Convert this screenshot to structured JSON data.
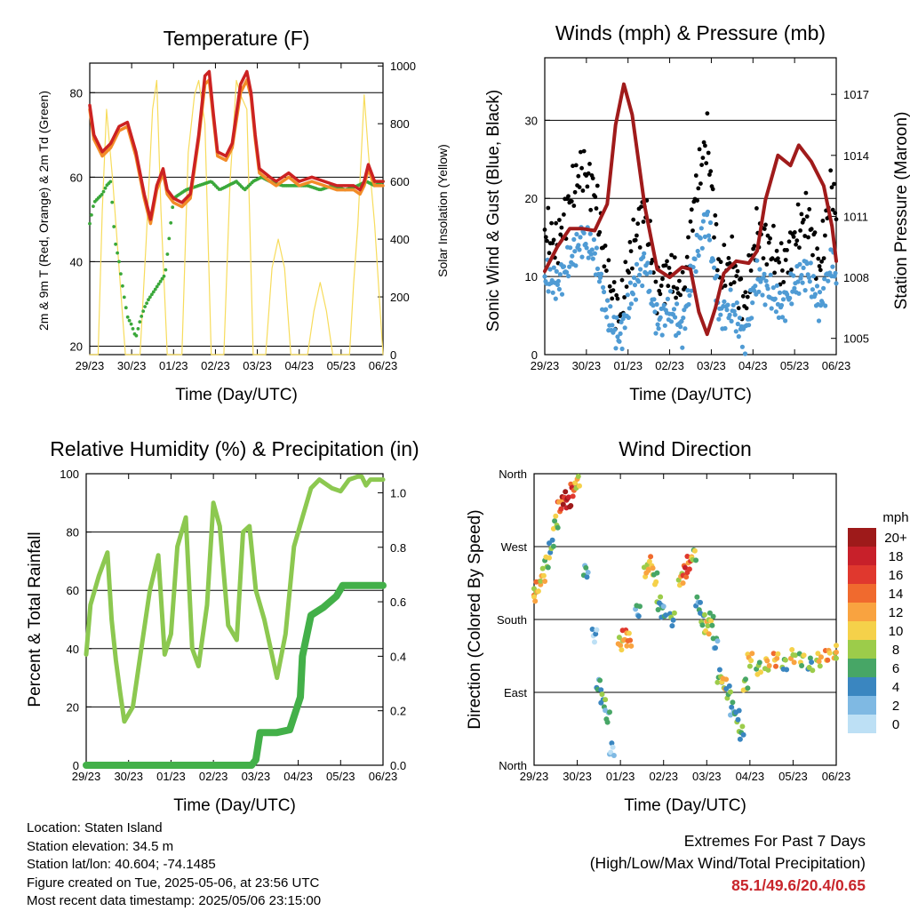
{
  "chart_data": [
    {
      "type": "line",
      "title": "Temperature (F)",
      "xlabel": "Time (Day/UTC)",
      "ylabel": "2m & 9m T (Red, Orange) & 2m Td (Green)",
      "ylabel_right": "Solar Insolation (Yellow)",
      "x_ticks": [
        "29/23",
        "30/23",
        "01/23",
        "02/23",
        "03/23",
        "04/23",
        "05/23",
        "06/23"
      ],
      "y_ticks": [
        20,
        40,
        60,
        80
      ],
      "y_ticks_right": [
        0,
        200,
        400,
        600,
        800,
        1000
      ],
      "ylim": [
        18,
        87
      ],
      "ylim_right": [
        0,
        1010
      ],
      "grid": true,
      "colors": {
        "t2m": "#cc2222",
        "t9m": "#f28c28",
        "td": "#3aa83a",
        "solar": "#f7dc5c"
      },
      "series": [
        {
          "key": "t2m",
          "x": [
            0,
            0.1,
            0.3,
            0.5,
            0.7,
            0.9,
            1.1,
            1.3,
            1.45,
            1.6,
            1.75,
            1.85,
            2.0,
            2.2,
            2.4,
            2.6,
            2.75,
            2.85,
            2.95,
            3.05,
            3.25,
            3.4,
            3.6,
            3.75,
            3.85,
            3.95,
            4.05,
            4.3,
            4.45,
            4.6,
            4.75,
            5.0,
            5.3,
            5.6,
            5.9,
            6.1,
            6.3,
            6.45,
            6.55,
            6.65,
            6.8,
            7.0
          ],
          "values": [
            77,
            70,
            66,
            68,
            72,
            73,
            66,
            56,
            50,
            58,
            62,
            57,
            55,
            54,
            56,
            70,
            84,
            85,
            75,
            66,
            65,
            68,
            82,
            85,
            80,
            70,
            62,
            60,
            59,
            60,
            61,
            59,
            60,
            59,
            58,
            58,
            58,
            57,
            59,
            63,
            59,
            59
          ]
        },
        {
          "key": "t9m",
          "x": [
            0,
            0.1,
            0.3,
            0.5,
            0.7,
            0.9,
            1.1,
            1.3,
            1.45,
            1.6,
            1.75,
            1.85,
            2.0,
            2.2,
            2.4,
            2.6,
            2.75,
            2.85,
            2.95,
            3.05,
            3.25,
            3.4,
            3.6,
            3.75,
            3.85,
            3.95,
            4.05,
            4.3,
            4.45,
            4.6,
            4.75,
            5.0,
            5.3,
            5.6,
            5.9,
            6.1,
            6.3,
            6.45,
            6.55,
            6.65,
            6.8,
            7.0
          ],
          "values": [
            76,
            69,
            65,
            67,
            71,
            72,
            65,
            55,
            49,
            57,
            61,
            56,
            54,
            53,
            55,
            69,
            82,
            83,
            74,
            65,
            64,
            67,
            80,
            83,
            79,
            69,
            61,
            59,
            58,
            59,
            60,
            58,
            59,
            58,
            57,
            57,
            57,
            56,
            58,
            62,
            58,
            58
          ]
        },
        {
          "key": "td",
          "x": [
            0,
            0.1,
            0.3,
            0.4,
            0.5,
            0.6,
            0.7,
            0.8,
            0.9,
            1.0,
            1.1,
            1.2,
            1.3,
            1.4,
            1.6,
            1.8,
            2.0,
            2.3,
            2.6,
            2.9,
            3.1,
            3.3,
            3.5,
            3.7,
            3.9,
            4.1,
            4.3,
            4.6,
            4.9,
            5.2,
            5.5,
            5.8,
            6.1,
            6.4,
            6.6,
            6.8,
            7.0
          ],
          "values": [
            49,
            54,
            56,
            58,
            59,
            45,
            40,
            33,
            27,
            25,
            22,
            26,
            29,
            31,
            34,
            37,
            55,
            57,
            58,
            59,
            57,
            58,
            59,
            57,
            59,
            60,
            59,
            58,
            58,
            58,
            57,
            58,
            57,
            58,
            59,
            58,
            59
          ]
        },
        {
          "key": "solar",
          "x": [
            0,
            0.2,
            0.3,
            0.4,
            0.55,
            0.7,
            0.85,
            1.0,
            1.2,
            1.35,
            1.5,
            1.6,
            1.7,
            1.85,
            2.0,
            2.2,
            2.35,
            2.5,
            2.6,
            2.75,
            2.9,
            3.2,
            3.35,
            3.5,
            3.6,
            3.75,
            3.9,
            4.2,
            4.35,
            4.5,
            4.65,
            4.8,
            5.2,
            5.35,
            5.5,
            5.65,
            5.8,
            6.2,
            6.3,
            6.4,
            6.55,
            6.65,
            6.8,
            7.0
          ],
          "values": [
            0,
            0,
            500,
            850,
            600,
            300,
            0,
            0,
            0,
            400,
            850,
            950,
            500,
            0,
            0,
            0,
            700,
            900,
            950,
            800,
            0,
            0,
            600,
            950,
            900,
            850,
            0,
            0,
            300,
            400,
            300,
            0,
            0,
            150,
            250,
            150,
            0,
            0,
            250,
            450,
            900,
            700,
            450,
            0
          ]
        }
      ]
    },
    {
      "type": "scatter",
      "title": "Winds (mph) & Pressure (mb)",
      "xlabel": "Time (Day/UTC)",
      "ylabel": "Sonic Wind & Gust (Blue, Black)",
      "ylabel_right": "Station Pressure (Maroon)",
      "x_ticks": [
        "29/23",
        "30/23",
        "01/23",
        "02/23",
        "03/23",
        "04/23",
        "05/23",
        "06/23"
      ],
      "y_ticks": [
        0,
        10,
        20,
        30
      ],
      "y_ticks_right": [
        1005,
        1008,
        1011,
        1014,
        1017
      ],
      "ylim": [
        0,
        38
      ],
      "ylim_right": [
        1004.2,
        1018.8
      ],
      "grid": true,
      "colors": {
        "wind": "#4f9bd4",
        "gust": "#000000",
        "pressure": "#a01b1b"
      },
      "series": [
        {
          "key": "wind",
          "x": [
            0,
            0.3,
            0.6,
            0.9,
            1.2,
            1.5,
            1.8,
            2.1,
            2.4,
            2.7,
            3.0,
            3.3,
            3.6,
            3.9,
            4.2,
            4.5,
            4.8,
            5.1,
            5.4,
            5.7,
            6.0,
            6.3,
            6.6,
            6.9,
            7.0
          ],
          "values": [
            10,
            9,
            12,
            15,
            13,
            5,
            2,
            8,
            12,
            4,
            6,
            3,
            12,
            18,
            5,
            6,
            2,
            10,
            8,
            6,
            9,
            11,
            6,
            12,
            10
          ]
        },
        {
          "key": "gust",
          "x": [
            0,
            0.3,
            0.6,
            0.9,
            1.2,
            1.5,
            1.8,
            2.1,
            2.4,
            2.7,
            3.0,
            3.3,
            3.6,
            3.9,
            4.2,
            4.5,
            4.8,
            5.1,
            5.4,
            5.7,
            6.0,
            6.3,
            6.6,
            6.9,
            7.0
          ],
          "values": [
            16,
            14,
            20,
            24,
            21,
            10,
            5,
            14,
            19,
            8,
            11,
            7,
            20,
            28,
            10,
            12,
            6,
            16,
            14,
            11,
            15,
            18,
            11,
            22,
            17
          ]
        },
        {
          "key": "pressure",
          "x": [
            0,
            0.3,
            0.6,
            0.9,
            1.2,
            1.5,
            1.7,
            1.9,
            2.1,
            2.4,
            2.7,
            3.0,
            3.3,
            3.5,
            3.7,
            3.9,
            4.1,
            4.3,
            4.6,
            4.9,
            5.1,
            5.3,
            5.6,
            5.9,
            6.1,
            6.4,
            6.7,
            6.9,
            7.0
          ],
          "values": [
            1008.3,
            1009.5,
            1010.4,
            1010.4,
            1010.3,
            1011.6,
            1015.5,
            1017.5,
            1016.0,
            1011.5,
            1008.4,
            1008.0,
            1008.5,
            1008.4,
            1006.3,
            1005.2,
            1006.5,
            1008.2,
            1008.8,
            1008.7,
            1009.3,
            1011.8,
            1014.0,
            1013.5,
            1014.5,
            1013.7,
            1012.5,
            1010.5,
            1008.8
          ]
        }
      ]
    },
    {
      "type": "line",
      "title": "Relative Humidity (%) & Precipitation (in)",
      "xlabel": "Time (Day/UTC)",
      "ylabel": "Percent & Total Rainfall",
      "x_ticks": [
        "29/23",
        "30/23",
        "01/23",
        "02/23",
        "03/23",
        "04/23",
        "05/23",
        "06/23"
      ],
      "y_ticks": [
        0,
        20,
        40,
        60,
        80,
        100
      ],
      "y_ticks_right": [
        "0.0",
        "0.2",
        "0.4",
        "0.6",
        "0.8",
        "1.0"
      ],
      "ylim": [
        0,
        100
      ],
      "ylim_right": [
        0,
        1.07
      ],
      "grid": true,
      "colors": {
        "rh": "#8cc850",
        "precip": "#43b049"
      },
      "series": [
        {
          "key": "rh",
          "x": [
            0,
            0.1,
            0.3,
            0.5,
            0.6,
            0.7,
            0.8,
            0.9,
            1.1,
            1.3,
            1.5,
            1.7,
            1.85,
            2.0,
            2.15,
            2.35,
            2.5,
            2.65,
            2.85,
            3.0,
            3.15,
            3.35,
            3.55,
            3.7,
            3.85,
            4.0,
            4.2,
            4.5,
            4.7,
            4.9,
            5.1,
            5.3,
            5.5,
            5.8,
            6.0,
            6.2,
            6.4,
            6.5,
            6.6,
            6.7,
            7.0
          ],
          "values": [
            38,
            55,
            65,
            73,
            50,
            36,
            25,
            15,
            20,
            40,
            60,
            72,
            38,
            45,
            75,
            85,
            40,
            34,
            55,
            90,
            82,
            48,
            43,
            80,
            82,
            60,
            50,
            30,
            45,
            75,
            85,
            95,
            98,
            95,
            94,
            98,
            99,
            99,
            96,
            98,
            98
          ]
        },
        {
          "key": "precip",
          "x": [
            0,
            3.9,
            4.0,
            4.1,
            4.5,
            4.8,
            5.05,
            5.1,
            5.3,
            5.6,
            5.9,
            6.05,
            6.4,
            7.0
          ],
          "values": [
            0,
            0,
            0.02,
            0.12,
            0.12,
            0.13,
            0.25,
            0.4,
            0.55,
            0.58,
            0.62,
            0.66,
            0.66,
            0.66
          ]
        }
      ]
    },
    {
      "type": "scatter",
      "title": "Wind Direction",
      "xlabel": "Time (Day/UTC)",
      "ylabel": "Direction (Colored By Speed)",
      "x_ticks": [
        "29/23",
        "30/23",
        "01/23",
        "02/23",
        "03/23",
        "04/23",
        "05/23",
        "06/23"
      ],
      "y_ticks": [
        "North",
        "East",
        "South",
        "West",
        "North"
      ],
      "ylim": [
        0,
        360
      ],
      "grid": true,
      "legend": {
        "title": "mph",
        "labels": [
          "20+",
          "18",
          "16",
          "14",
          "12",
          "10",
          "8",
          "6",
          "4",
          "2",
          "0"
        ],
        "colors": [
          "#9e1a1a",
          "#c8202a",
          "#e0382e",
          "#f06a2e",
          "#f9a340",
          "#f5d14a",
          "#9ccc4a",
          "#47a666",
          "#3a86c0",
          "#7fb9e3",
          "#bde0f5"
        ],
        "placement": "right"
      },
      "points": [
        [
          0,
          210,
          10
        ],
        [
          0.1,
          220,
          12
        ],
        [
          0.2,
          235,
          10
        ],
        [
          0.3,
          250,
          8
        ],
        [
          0.4,
          270,
          6
        ],
        [
          0.5,
          300,
          8
        ],
        [
          0.6,
          320,
          14
        ],
        [
          0.7,
          330,
          18
        ],
        [
          0.8,
          325,
          20
        ],
        [
          0.9,
          340,
          16
        ],
        [
          1.0,
          350,
          10
        ],
        [
          1.2,
          240,
          4
        ],
        [
          1.4,
          160,
          2
        ],
        [
          1.5,
          100,
          4
        ],
        [
          1.6,
          80,
          6
        ],
        [
          1.7,
          60,
          4
        ],
        [
          1.8,
          20,
          2
        ],
        [
          2.0,
          150,
          10
        ],
        [
          2.1,
          160,
          14
        ],
        [
          2.2,
          155,
          12
        ],
        [
          2.4,
          190,
          4
        ],
        [
          2.6,
          240,
          10
        ],
        [
          2.7,
          250,
          12
        ],
        [
          2.8,
          230,
          8
        ],
        [
          2.9,
          200,
          6
        ],
        [
          3.0,
          190,
          4
        ],
        [
          3.2,
          180,
          6
        ],
        [
          3.4,
          230,
          10
        ],
        [
          3.5,
          240,
          16
        ],
        [
          3.6,
          250,
          14
        ],
        [
          3.7,
          260,
          8
        ],
        [
          3.8,
          200,
          4
        ],
        [
          3.9,
          180,
          6
        ],
        [
          4.0,
          170,
          10
        ],
        [
          4.1,
          180,
          8
        ],
        [
          4.2,
          150,
          4
        ],
        [
          4.3,
          110,
          6
        ],
        [
          4.4,
          100,
          10
        ],
        [
          4.5,
          90,
          6
        ],
        [
          4.6,
          70,
          4
        ],
        [
          4.7,
          60,
          6
        ],
        [
          4.8,
          40,
          6
        ],
        [
          4.9,
          100,
          8
        ],
        [
          5.0,
          130,
          10
        ],
        [
          5.2,
          120,
          8
        ],
        [
          5.4,
          125,
          10
        ],
        [
          5.6,
          130,
          12
        ],
        [
          5.8,
          125,
          6
        ],
        [
          6.0,
          135,
          10
        ],
        [
          6.2,
          130,
          8
        ],
        [
          6.4,
          125,
          6
        ],
        [
          6.6,
          130,
          10
        ],
        [
          6.8,
          135,
          12
        ],
        [
          7.0,
          140,
          10
        ]
      ]
    }
  ],
  "info": {
    "location": "Location: Staten Island",
    "elevation": "Station elevation: 34.5 m",
    "latlon": "Station lat/lon: 40.604; -74.1485",
    "created": "Figure created on Tue, 2025-05-06, at 23:56 UTC",
    "recent": "Most recent data timestamp: 2025/05/06 23:15:00"
  },
  "extremes": {
    "title": "Extremes For Past 7 Days",
    "subtitle": "(High/Low/Max Wind/Total Precipitation)",
    "values": "85.1/49.6/20.4/0.65"
  }
}
